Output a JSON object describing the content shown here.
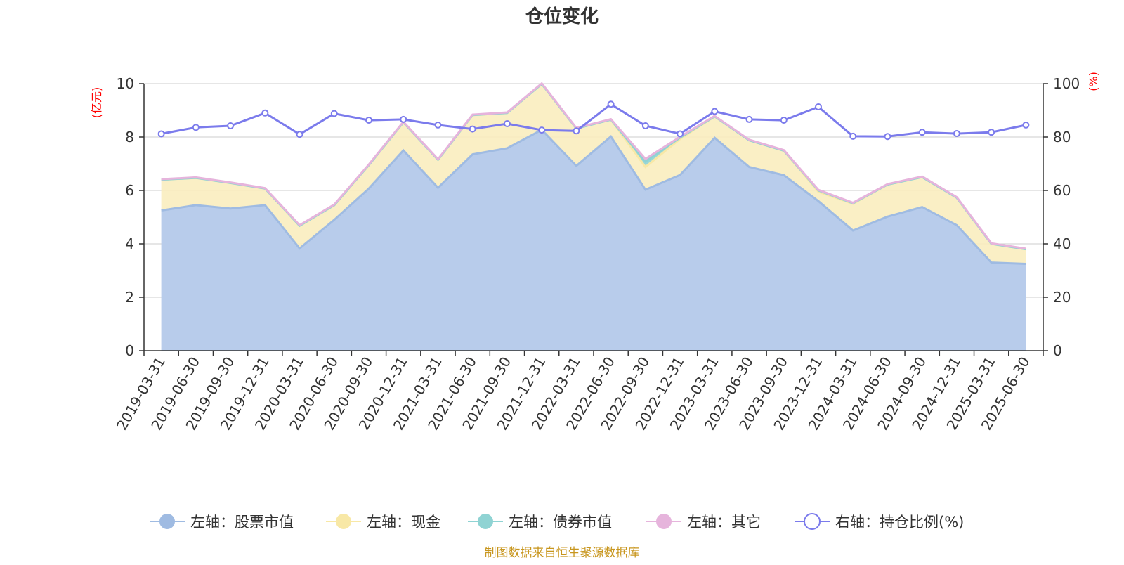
{
  "title": "仓位变化",
  "source_note": "制图数据来自恒生聚源数据库",
  "left_unit": "(亿元)",
  "right_unit": "(%)",
  "colors": {
    "stock": "#9fbbe2",
    "stock_fill": "#b8cceb",
    "cash": "#f8e8a6",
    "cash_fill": "#faedbf",
    "bond": "#8fd3d3",
    "other": "#e6b4dc",
    "ratio": "#7b7bec",
    "grid": "#cccccc",
    "axis": "#333333"
  },
  "chart_data": {
    "type": "area",
    "title": "仓位变化",
    "categories": [
      "2019-03-31",
      "2019-06-30",
      "2019-09-30",
      "2019-12-31",
      "2020-03-31",
      "2020-06-30",
      "2020-09-30",
      "2020-12-31",
      "2021-03-31",
      "2021-06-30",
      "2021-09-30",
      "2021-12-31",
      "2022-03-31",
      "2022-06-30",
      "2022-09-30",
      "2022-12-31",
      "2023-03-31",
      "2023-06-30",
      "2023-09-30",
      "2023-12-31",
      "2024-03-31",
      "2024-06-30",
      "2024-09-30",
      "2024-12-31",
      "2025-03-31",
      "2025-06-30"
    ],
    "left_axis": {
      "ylim": [
        0,
        10
      ],
      "ticks": [
        0,
        2,
        4,
        6,
        8,
        10
      ],
      "unit": "亿元"
    },
    "right_axis": {
      "ylim": [
        0,
        100
      ],
      "ticks": [
        0,
        20,
        40,
        60,
        80,
        100
      ],
      "unit": "%"
    },
    "stacked": true,
    "series": [
      {
        "name": "左轴：股票市值",
        "axis": "left",
        "values": [
          5.25,
          5.45,
          5.32,
          5.45,
          3.83,
          4.9,
          6.07,
          7.5,
          6.1,
          7.35,
          7.58,
          8.27,
          6.92,
          8.02,
          6.03,
          6.58,
          7.97,
          6.88,
          6.57,
          5.6,
          4.5,
          5.02,
          5.38,
          4.7,
          3.3,
          3.25
        ]
      },
      {
        "name": "左轴：现金",
        "axis": "left",
        "values": [
          1.15,
          1.02,
          0.96,
          0.62,
          0.85,
          0.55,
          0.88,
          1.05,
          1.05,
          1.47,
          1.32,
          1.72,
          1.4,
          0.63,
          0.85,
          1.35,
          0.8,
          1.0,
          0.92,
          0.35,
          1.0,
          1.2,
          1.12,
          1.03,
          0.7,
          0.55
        ]
      },
      {
        "name": "左轴：债券市值",
        "axis": "left",
        "values": [
          0,
          0,
          0,
          0,
          0,
          0,
          0,
          0,
          0,
          0,
          0,
          0,
          0,
          0,
          0.2,
          0.05,
          0,
          0,
          0,
          0.05,
          0.02,
          0,
          0,
          0,
          0,
          0
        ]
      },
      {
        "name": "左轴：其它",
        "axis": "left",
        "values": [
          0.02,
          0.02,
          0.02,
          0.02,
          0.02,
          0.02,
          0.02,
          0.02,
          0.02,
          0.02,
          0.02,
          0.02,
          0.02,
          0.02,
          0.1,
          0.03,
          0.02,
          0.02,
          0.02,
          0.02,
          0.02,
          0.02,
          0.02,
          0.02,
          0.02,
          0.02
        ]
      },
      {
        "name": "右轴：持仓比例(%)",
        "axis": "right",
        "type": "line",
        "values": [
          81.2,
          83.6,
          84.2,
          89,
          81,
          88.8,
          86.3,
          86.6,
          84.5,
          83,
          85,
          82.6,
          82.3,
          92.3,
          84.2,
          81.2,
          89.6,
          86.6,
          86.3,
          91.3,
          80.3,
          80.2,
          81.8,
          81.3,
          81.8,
          84.5
        ]
      }
    ],
    "legend_position": "bottom",
    "grid": true
  }
}
